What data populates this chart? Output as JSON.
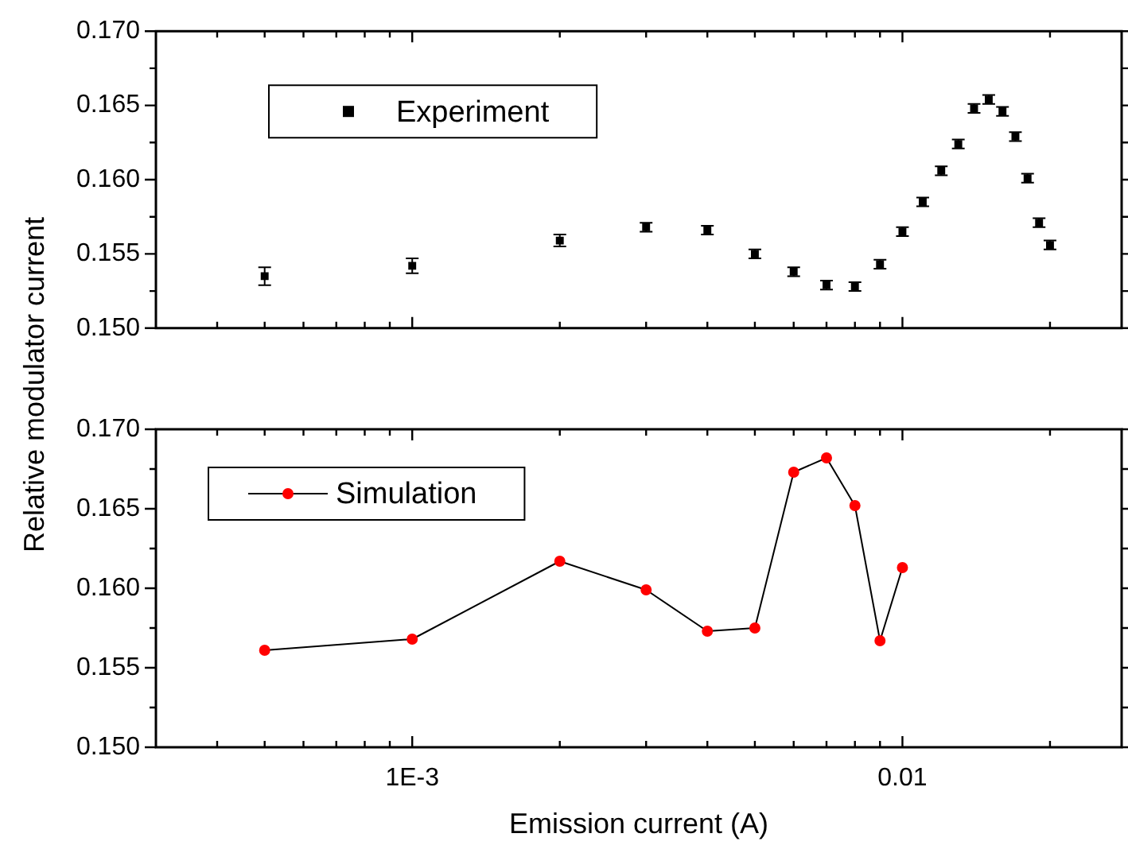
{
  "chart_data": [
    {
      "type": "scatter",
      "ylabel": "Relative modulator current",
      "log": "x",
      "xlim": [
        0.0003,
        0.028
      ],
      "ylim": [
        0.15,
        0.17
      ],
      "xticks": [
        {
          "value": 0.0004,
          "label": null
        },
        {
          "value": 0.0005,
          "label": null
        },
        {
          "value": 0.0006,
          "label": null
        },
        {
          "value": 0.0007,
          "label": null
        },
        {
          "value": 0.0008,
          "label": null
        },
        {
          "value": 0.0009,
          "label": null
        },
        0.001,
        {
          "value": 0.002,
          "label": null
        },
        {
          "value": 0.003,
          "label": null
        },
        {
          "value": 0.004,
          "label": null
        },
        {
          "value": 0.005,
          "label": null
        },
        {
          "value": 0.006,
          "label": null
        },
        {
          "value": 0.007,
          "label": null
        },
        {
          "value": 0.008,
          "label": null
        },
        {
          "value": 0.009,
          "label": null
        },
        0.01,
        {
          "value": 0.02,
          "label": null
        }
      ],
      "yticks": [
        {
          "value": 0.15,
          "label": "0.150"
        },
        {
          "value": 0.1525,
          "label": null
        },
        {
          "value": 0.155,
          "label": "0.155"
        },
        {
          "value": 0.1575,
          "label": null
        },
        {
          "value": 0.16,
          "label": "0.160"
        },
        {
          "value": 0.1625,
          "label": null
        },
        {
          "value": 0.165,
          "label": "0.165"
        },
        {
          "value": 0.1675,
          "label": null
        },
        {
          "value": 0.17,
          "label": "0.170"
        }
      ],
      "tick_labels": "y",
      "grid": false,
      "legend": "top left",
      "marker": "square",
      "x": [
        0.0005,
        0.001,
        0.002,
        0.003,
        0.004,
        0.005,
        0.006,
        0.007,
        0.008,
        0.009,
        0.01,
        0.011,
        0.012,
        0.013,
        0.014,
        0.015,
        0.016,
        0.017,
        0.018,
        0.019,
        0.02
      ],
      "series": [
        {
          "name": "Experiment",
          "color": "#000000",
          "values": [
            0.1535,
            0.1542,
            0.1559,
            0.1568,
            0.1566,
            0.155,
            0.1538,
            0.1529,
            0.1528,
            0.1543,
            0.1565,
            0.1585,
            0.1606,
            0.1624,
            0.1648,
            0.1654,
            0.1646,
            0.1629,
            0.1601,
            0.1571,
            0.1556
          ],
          "errors": [
            0.0006,
            0.0005,
            0.0004,
            0.0003,
            0.0003,
            0.0003,
            0.0003,
            0.0003,
            0.0003,
            0.0003,
            0.0003,
            0.0003,
            0.0003,
            0.0003,
            0.0003,
            0.0003,
            0.0003,
            0.0003,
            0.0003,
            0.0003,
            0.0003
          ]
        }
      ]
    },
    {
      "type": "line",
      "xlabel": "Emission current (A)",
      "log": "x",
      "xlim": [
        0.0003,
        0.028
      ],
      "ylim": [
        0.15,
        0.17
      ],
      "xticks": [
        {
          "value": 0.0004,
          "label": null
        },
        {
          "value": 0.0005,
          "label": null
        },
        {
          "value": 0.0006,
          "label": null
        },
        {
          "value": 0.0007,
          "label": null
        },
        {
          "value": 0.0008,
          "label": null
        },
        {
          "value": 0.0009,
          "label": null
        },
        {
          "value": 0.001,
          "label": "1E-3"
        },
        {
          "value": 0.002,
          "label": null
        },
        {
          "value": 0.003,
          "label": null
        },
        {
          "value": 0.004,
          "label": null
        },
        {
          "value": 0.005,
          "label": null
        },
        {
          "value": 0.006,
          "label": null
        },
        {
          "value": 0.007,
          "label": null
        },
        {
          "value": 0.008,
          "label": null
        },
        {
          "value": 0.009,
          "label": null
        },
        {
          "value": 0.01,
          "label": "0.01"
        },
        {
          "value": 0.02,
          "label": null
        }
      ],
      "yticks": [
        {
          "value": 0.15,
          "label": "0.150"
        },
        {
          "value": 0.1525,
          "label": null
        },
        {
          "value": 0.155,
          "label": "0.155"
        },
        {
          "value": 0.1575,
          "label": null
        },
        {
          "value": 0.16,
          "label": "0.160"
        },
        {
          "value": 0.1625,
          "label": null
        },
        {
          "value": 0.165,
          "label": "0.165"
        },
        {
          "value": 0.1675,
          "label": null
        },
        {
          "value": 0.17,
          "label": "0.170"
        }
      ],
      "grid": false,
      "legend": "top left",
      "marker": "circle",
      "line_style": "solid",
      "x": [
        0.0005,
        0.001,
        0.002,
        0.003,
        0.004,
        0.005,
        0.006,
        0.007,
        0.008,
        0.009,
        0.01
      ],
      "series": [
        {
          "name": "Simulation",
          "color": "#ff0000",
          "values": [
            0.1561,
            0.1568,
            0.1617,
            0.1599,
            0.1573,
            0.1575,
            0.1673,
            0.1682,
            0.1652,
            0.1567,
            0.1613
          ]
        }
      ]
    }
  ]
}
